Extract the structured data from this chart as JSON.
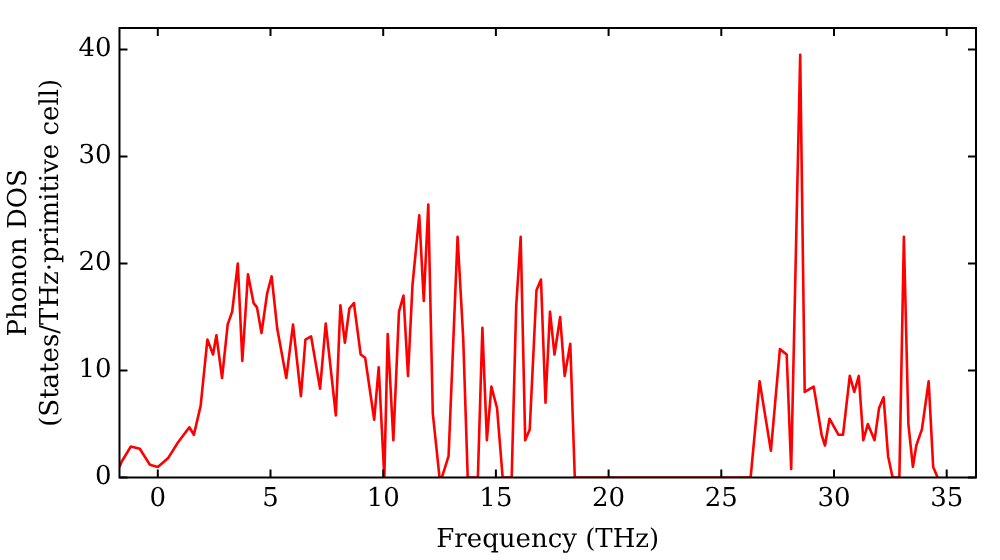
{
  "chart_data": {
    "type": "line",
    "xlabel": "Frequency (THz)",
    "ylabel": "Phonon DOS\n(States/THz·primitive cell)",
    "xlim": [
      -1.7,
      36.3
    ],
    "ylim": [
      0,
      42
    ],
    "xticks": [
      0,
      5,
      10,
      15,
      20,
      25,
      30,
      35
    ],
    "yticks": [
      0,
      10,
      20,
      30,
      40
    ],
    "grid": false,
    "legend": false,
    "marker": "none",
    "line_style": "solid",
    "series": [
      {
        "color": "#ff0000",
        "x": [
          -1.7,
          -1.6,
          -1.2,
          -0.8,
          -0.35,
          0,
          0.45,
          0.9,
          1.4,
          1.6,
          1.9,
          2.2,
          2.45,
          2.6,
          2.85,
          3.1,
          3.3,
          3.55,
          3.75,
          4.0,
          4.25,
          4.4,
          4.6,
          4.85,
          5.05,
          5.3,
          5.7,
          6.0,
          6.35,
          6.55,
          6.8,
          7.2,
          7.45,
          7.9,
          8.1,
          8.3,
          8.5,
          8.7,
          9.0,
          9.2,
          9.6,
          9.8,
          10.05,
          10.2,
          10.45,
          10.7,
          10.9,
          11.1,
          11.3,
          11.6,
          11.8,
          12.0,
          12.2,
          12.5,
          12.6,
          12.9,
          13.3,
          13.55,
          13.75,
          14.2,
          14.4,
          14.6,
          14.8,
          15.05,
          15.3,
          15.7,
          15.9,
          16.1,
          16.3,
          16.5,
          16.8,
          17.0,
          17.2,
          17.4,
          17.6,
          17.85,
          18.05,
          18.3,
          18.5,
          26.3,
          26.7,
          27.2,
          27.6,
          27.9,
          28.1,
          28.5,
          28.7,
          29.1,
          29.45,
          29.6,
          29.8,
          30.2,
          30.4,
          30.7,
          30.9,
          31.1,
          31.3,
          31.5,
          31.8,
          32.0,
          32.2,
          32.4,
          32.6,
          32.9,
          33.1,
          33.3,
          33.5,
          33.65,
          33.9,
          34.2,
          34.4,
          34.6
        ],
        "values": [
          1.0,
          1.5,
          2.9,
          2.7,
          1.2,
          1.0,
          1.8,
          3.3,
          4.7,
          4.0,
          6.7,
          12.9,
          11.5,
          13.3,
          9.3,
          14.3,
          15.5,
          20.0,
          10.9,
          19.0,
          16.3,
          15.9,
          13.5,
          17.2,
          18.8,
          13.9,
          9.3,
          14.3,
          7.6,
          12.9,
          13.2,
          8.3,
          14.4,
          5.8,
          16.1,
          12.6,
          15.8,
          16.3,
          11.5,
          11.2,
          5.4,
          10.3,
          0,
          13.4,
          3.5,
          15.5,
          17,
          9.5,
          18,
          24.5,
          16.5,
          25.5,
          6,
          0,
          0,
          2,
          22.5,
          13,
          0,
          0,
          14,
          3.5,
          8.5,
          6.5,
          0,
          0,
          16,
          22.5,
          3.5,
          4.5,
          17.5,
          18.5,
          7,
          15.5,
          11.5,
          15,
          9.5,
          12.5,
          0,
          0,
          9,
          2.5,
          12,
          11.5,
          0.8,
          39.5,
          8,
          8.5,
          4,
          3,
          5.5,
          4,
          4,
          9.5,
          8,
          9.5,
          3.5,
          5,
          3.5,
          6.5,
          7.5,
          2,
          0,
          0,
          22.5,
          5,
          1,
          3,
          4.5,
          9,
          1,
          0
        ]
      }
    ]
  }
}
